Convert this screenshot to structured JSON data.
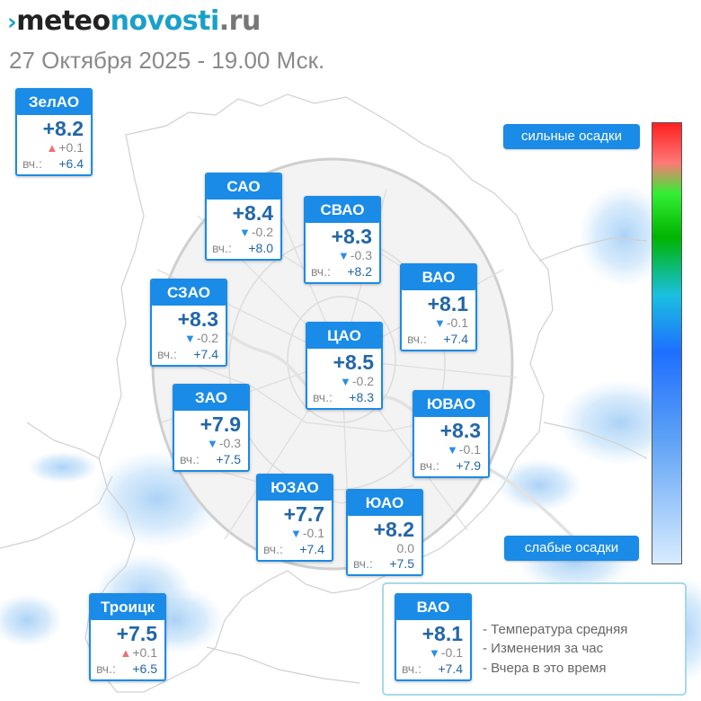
{
  "header": {
    "logo": {
      "mark": "›",
      "part1": "meteo",
      "part2": "novosti",
      "part3": ".ru"
    },
    "subtitle": "27 Октября 2025 - 19.00 Мск."
  },
  "districts": [
    {
      "name": "ЗелАО",
      "temp": "+8.2",
      "trend": "up",
      "change": "+0.1",
      "yesterday_label": "вч.:",
      "yesterday": "+6.4"
    },
    {
      "name": "САО",
      "temp": "+8.4",
      "trend": "down",
      "change": "-0.2",
      "yesterday_label": "вч.:",
      "yesterday": "+8.0"
    },
    {
      "name": "СВАО",
      "temp": "+8.3",
      "trend": "down",
      "change": "-0.3",
      "yesterday_label": "вч.:",
      "yesterday": "+8.2"
    },
    {
      "name": "ВАО",
      "temp": "+8.1",
      "trend": "down",
      "change": "-0.1",
      "yesterday_label": "вч.:",
      "yesterday": "+7.4"
    },
    {
      "name": "СЗАО",
      "temp": "+8.3",
      "trend": "down",
      "change": "-0.2",
      "yesterday_label": "вч.:",
      "yesterday": "+7.4"
    },
    {
      "name": "ЦАО",
      "temp": "+8.5",
      "trend": "down",
      "change": "-0.2",
      "yesterday_label": "вч.:",
      "yesterday": "+8.3"
    },
    {
      "name": "ЗАО",
      "temp": "+7.9",
      "trend": "down",
      "change": "-0.3",
      "yesterday_label": "вч.:",
      "yesterday": "+7.5"
    },
    {
      "name": "ЮВАО",
      "temp": "+8.3",
      "trend": "down",
      "change": "-0.1",
      "yesterday_label": "вч.:",
      "yesterday": "+7.9"
    },
    {
      "name": "ЮЗАО",
      "temp": "+7.7",
      "trend": "down",
      "change": "-0.1",
      "yesterday_label": "вч.:",
      "yesterday": "+7.4"
    },
    {
      "name": "ЮАО",
      "temp": "+8.2",
      "trend": "none",
      "change": "0.0",
      "yesterday_label": "вч.:",
      "yesterday": "+7.5"
    },
    {
      "name": "Троицк",
      "temp": "+7.5",
      "trend": "up",
      "change": "+0.1",
      "yesterday_label": "вч.:",
      "yesterday": "+6.5"
    }
  ],
  "scale": {
    "top_label": "сильные осадки",
    "bottom_label": "слабые осадки",
    "colors": [
      "#ff2020",
      "#33ee33",
      "#1ac0e0",
      "#1e6fff",
      "#d8ecff"
    ]
  },
  "legend": {
    "sample": {
      "name": "ВАО",
      "temp": "+8.1",
      "trend": "down",
      "change": "-0.1",
      "yesterday_label": "вч.:",
      "yesterday": "+7.4"
    },
    "items": [
      "- Температура средняя",
      "- Изменения за час",
      "- Вчера в это время"
    ]
  },
  "colors": {
    "card_blue": "#1a8be6",
    "temp_text": "#2266a8",
    "trend_down": "#2a8ee8",
    "trend_up": "#f07070"
  }
}
